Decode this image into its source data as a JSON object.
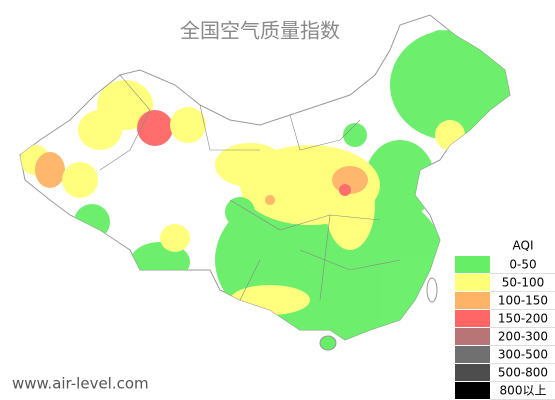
{
  "title": "全国空气质量指数",
  "legend": {
    "title": "AQI",
    "items": [
      {
        "label": "0-50",
        "color": "#66ee66"
      },
      {
        "label": "50-100",
        "color": "#ffff77"
      },
      {
        "label": "100-150",
        "color": "#ffb366"
      },
      {
        "label": "150-200",
        "color": "#ff6666"
      },
      {
        "label": "200-300",
        "color": "#b87575"
      },
      {
        "label": "300-500",
        "color": "#707070"
      },
      {
        "label": "500-800",
        "color": "#4d4d4d"
      },
      {
        "label": "800以上",
        "color": "#000000"
      }
    ]
  },
  "watermark": "www.air-level.com"
}
